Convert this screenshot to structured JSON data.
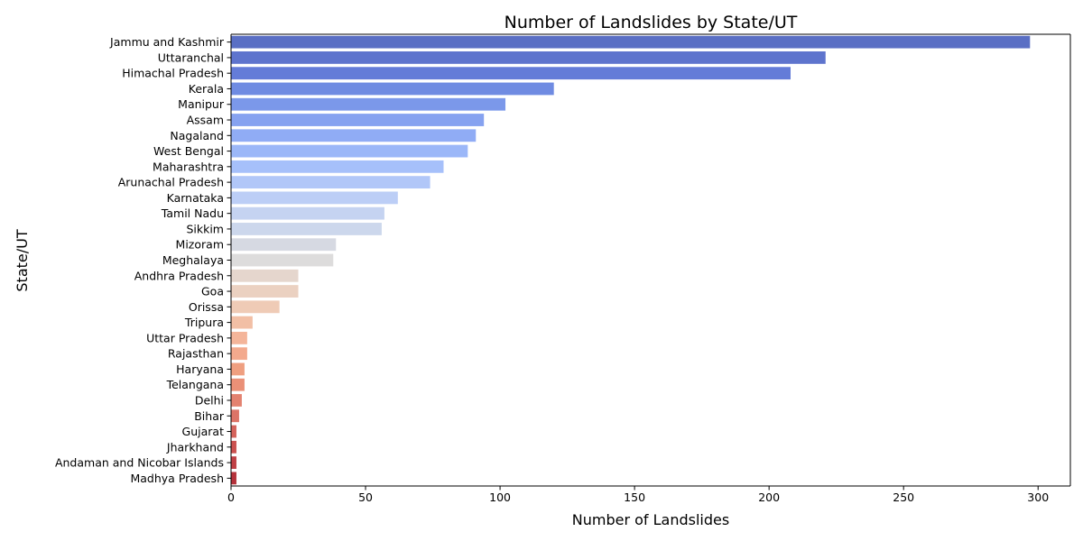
{
  "chart_data": {
    "type": "bar",
    "orientation": "horizontal",
    "title": "Number of Landslides by State/UT",
    "xlabel": "Number of Landslides",
    "ylabel": "State/UT",
    "xlim": [
      0,
      312
    ],
    "xticks": [
      0,
      50,
      100,
      150,
      200,
      250,
      300
    ],
    "grid": false,
    "palette": "coolwarm",
    "categories": [
      "Jammu and Kashmir",
      "Uttaranchal",
      "Himachal Pradesh",
      "Kerala",
      "Manipur",
      "Assam",
      "Nagaland",
      "West Bengal",
      "Maharashtra",
      "Arunachal Pradesh",
      "Karnataka",
      "Tamil Nadu",
      "Sikkim",
      "Mizoram",
      "Meghalaya",
      "Andhra Pradesh",
      "Goa",
      "Orissa",
      "Tripura",
      "Uttar Pradesh",
      "Rajasthan",
      "Haryana",
      "Telangana",
      "Delhi",
      "Bihar",
      "Gujarat",
      "Jharkhand",
      "Andaman and Nicobar Islands",
      "Madhya Pradesh"
    ],
    "values": [
      297,
      221,
      208,
      120,
      102,
      94,
      91,
      88,
      79,
      74,
      62,
      57,
      56,
      39,
      38,
      25,
      25,
      18,
      8,
      6,
      6,
      5,
      5,
      4,
      3,
      2,
      2,
      2,
      2
    ],
    "colors": [
      "#5a6fc4",
      "#5e74cd",
      "#647cd8",
      "#6f8be2",
      "#7b98ea",
      "#86a2f0",
      "#90acf5",
      "#9bb7f8",
      "#a6c0fa",
      "#b1c7f8",
      "#bccef6",
      "#c5d3f1",
      "#ccd7ec",
      "#d6d9e2",
      "#dddcdc",
      "#e5d6cd",
      "#ebd1c1",
      "#efcbb6",
      "#f2bfa5",
      "#f4b59a",
      "#f3a98d",
      "#ef9f80",
      "#ea9077",
      "#e38270",
      "#dc7467",
      "#d4635b",
      "#cb5250",
      "#c04146",
      "#b5323b"
    ]
  }
}
